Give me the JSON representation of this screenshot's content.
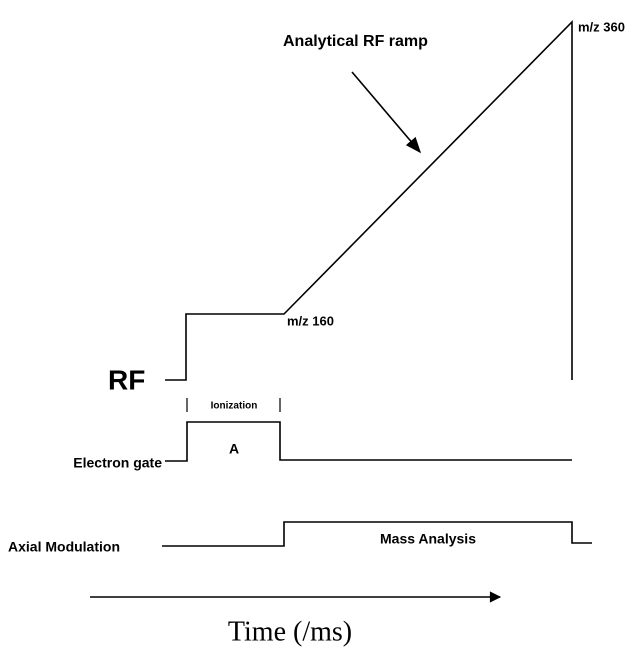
{
  "labels": {
    "ramp": "Analytical RF ramp",
    "mz_high": "m/z 360",
    "mz_low": "m/z 160",
    "rf": "RF",
    "ionization": "Ionization",
    "period": "A",
    "electron_gate": "Electron gate",
    "axial_modulation": "Axial Modulation",
    "mass_analysis": "Mass Analysis",
    "time_axis": "Time (/ms)"
  }
}
